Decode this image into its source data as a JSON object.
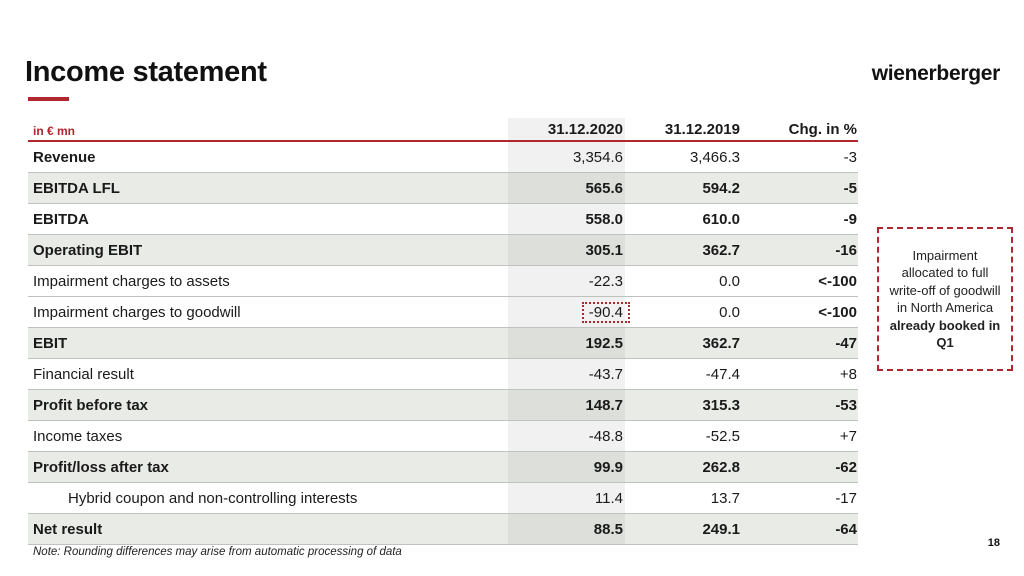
{
  "slide": {
    "title": "Income statement",
    "logo": "wienerberger",
    "page_number": "18",
    "note": "Note: Rounding differences may arise from automatic processing of data"
  },
  "table": {
    "unit_label": "in € mn",
    "columns": [
      "31.12.2020",
      "31.12.2019",
      "Chg. in %"
    ],
    "rows": [
      {
        "label": "Revenue",
        "v2020": "3,354.6",
        "v2019": "3,466.3",
        "chg": "-3"
      },
      {
        "label": "EBITDA LFL",
        "v2020": "565.6",
        "v2019": "594.2",
        "chg": "-5"
      },
      {
        "label": "EBITDA",
        "v2020": "558.0",
        "v2019": "610.0",
        "chg": "-9"
      },
      {
        "label": "Operating EBIT",
        "v2020": "305.1",
        "v2019": "362.7",
        "chg": "-16"
      },
      {
        "label": "Impairment charges to assets",
        "v2020": "-22.3",
        "v2019": "0.0",
        "chg": "<-100"
      },
      {
        "label": "Impairment charges to goodwill",
        "v2020": "-90.4",
        "v2019": "0.0",
        "chg": "<-100"
      },
      {
        "label": "EBIT",
        "v2020": "192.5",
        "v2019": "362.7",
        "chg": "-47"
      },
      {
        "label": "Financial result",
        "v2020": "-43.7",
        "v2019": "-47.4",
        "chg": "+8"
      },
      {
        "label": "Profit before tax",
        "v2020": "148.7",
        "v2019": "315.3",
        "chg": "-53"
      },
      {
        "label": "Income taxes",
        "v2020": "-48.8",
        "v2019": "-52.5",
        "chg": "+7"
      },
      {
        "label": "Profit/loss after tax",
        "v2020": "99.9",
        "v2019": "262.8",
        "chg": "-62"
      },
      {
        "label": "Hybrid coupon and non-controlling interests",
        "v2020": "11.4",
        "v2019": "13.7",
        "chg": "-17"
      },
      {
        "label": "Net result",
        "v2020": "88.5",
        "v2019": "249.1",
        "chg": "-64"
      }
    ]
  },
  "annotation": {
    "text_regular": "Impairment allocated to full write-off of goodwill in North America",
    "text_bold": "already booked in Q1"
  },
  "colors": {
    "accent_red": "#AF272F",
    "row_shade": "#e9ebe7",
    "column_shade": "rgba(110,120,110,0.10)"
  }
}
